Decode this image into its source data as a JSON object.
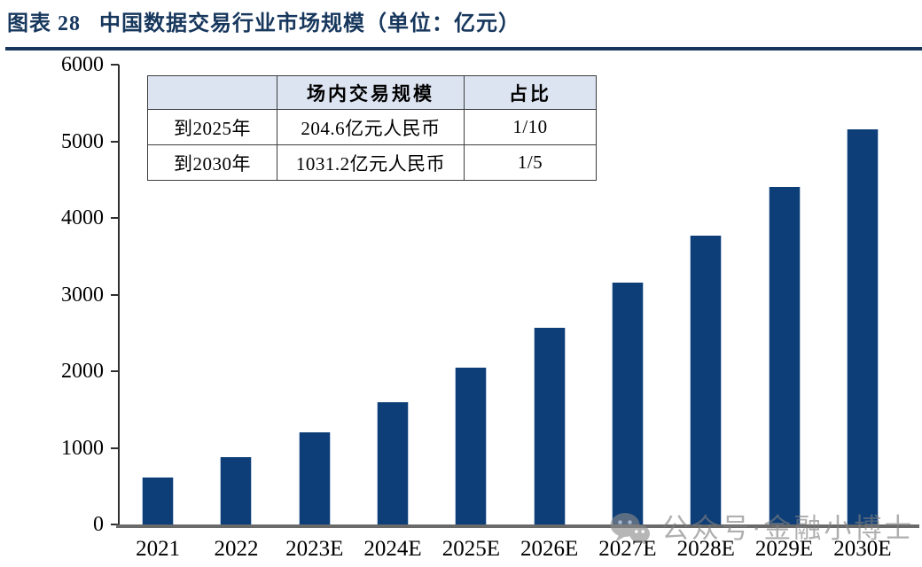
{
  "header": {
    "title": "图表 28   中国数据交易行业市场规模（单位：亿元）",
    "accent_color": "#17375d"
  },
  "chart_data": {
    "type": "bar",
    "title": "中国数据交易行业市场规模",
    "unit_label": "亿元",
    "categories": [
      "2021",
      "2022",
      "2023E",
      "2024E",
      "2025E",
      "2026E",
      "2027E",
      "2028E",
      "2029E",
      "2030E"
    ],
    "values": [
      617.6,
      876.8,
      1204.2,
      1592.3,
      2046.0,
      2572.2,
      3152.6,
      3765.8,
      4403.7,
      5155.9
    ],
    "ylim": [
      0,
      6000
    ],
    "yticks": [
      0,
      1000,
      2000,
      3000,
      4000,
      5000,
      6000
    ],
    "grid": false,
    "legend": false,
    "bar_color": "#0d3e78",
    "axis_color": "#2f2f2f"
  },
  "table": {
    "headers": [
      "",
      "场内交易规模",
      "占比"
    ],
    "rows": [
      [
        "到2025年",
        "204.6亿元人民币",
        "1/10"
      ],
      [
        "到2030年",
        "1031.2亿元人民币",
        "1/5"
      ]
    ],
    "header_bg": "#dce4f1"
  },
  "watermark": {
    "icon": "wechat-official-account-icon",
    "text": "公众号·金融小博士",
    "color": "#7f7f7f"
  }
}
